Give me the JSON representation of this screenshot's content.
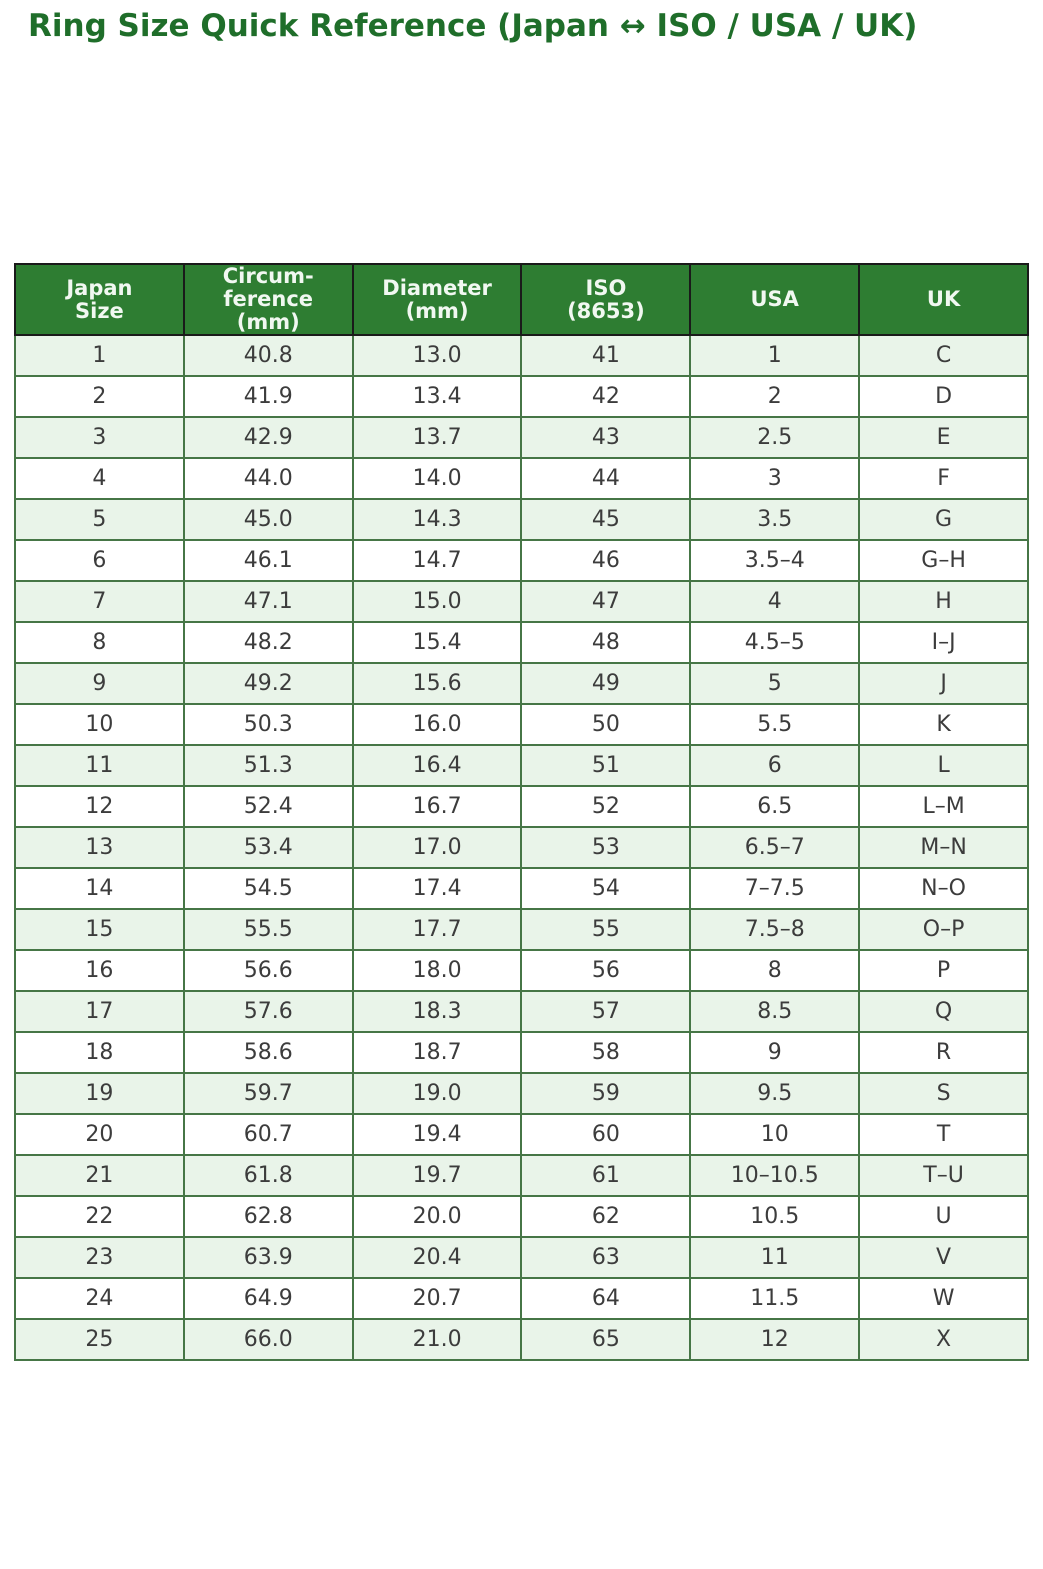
{
  "title": "Ring Size Quick Reference (Japan ↔ ISO / USA / UK)",
  "colors": {
    "header_bg": "#2e7d32",
    "header_text": "#f1f8f1",
    "row_alt_bg": "#e9f4e9",
    "row_bg": "#ffffff",
    "body_border": "#467646",
    "header_border": "#1a1a1a",
    "title_color": "#1f6e2a",
    "body_text": "#3c3c3c"
  },
  "table": {
    "header_display": [
      "Japan\nSize",
      "Circum-\nference\n(mm)",
      "Diameter\n(mm)",
      "ISO\n(8653)",
      "USA",
      "UK"
    ],
    "column_keys": [
      "japan-size",
      "circumference-mm",
      "diameter-mm",
      "iso-8653",
      "usa",
      "uk"
    ]
  },
  "chart_data": {
    "type": "table",
    "title": "Ring Size Quick Reference (Japan ↔ ISO / USA / UK)",
    "columns": [
      "Japan Size",
      "Circum-ference (mm)",
      "Diameter (mm)",
      "ISO (8653)",
      "USA",
      "UK"
    ],
    "rows": [
      [
        "1",
        "40.8",
        "13.0",
        "41",
        "1",
        "C"
      ],
      [
        "2",
        "41.9",
        "13.4",
        "42",
        "2",
        "D"
      ],
      [
        "3",
        "42.9",
        "13.7",
        "43",
        "2.5",
        "E"
      ],
      [
        "4",
        "44.0",
        "14.0",
        "44",
        "3",
        "F"
      ],
      [
        "5",
        "45.0",
        "14.3",
        "45",
        "3.5",
        "G"
      ],
      [
        "6",
        "46.1",
        "14.7",
        "46",
        "3.5–4",
        "G–H"
      ],
      [
        "7",
        "47.1",
        "15.0",
        "47",
        "4",
        "H"
      ],
      [
        "8",
        "48.2",
        "15.4",
        "48",
        "4.5–5",
        "I–J"
      ],
      [
        "9",
        "49.2",
        "15.6",
        "49",
        "5",
        "J"
      ],
      [
        "10",
        "50.3",
        "16.0",
        "50",
        "5.5",
        "K"
      ],
      [
        "11",
        "51.3",
        "16.4",
        "51",
        "6",
        "L"
      ],
      [
        "12",
        "52.4",
        "16.7",
        "52",
        "6.5",
        "L–M"
      ],
      [
        "13",
        "53.4",
        "17.0",
        "53",
        "6.5–7",
        "M–N"
      ],
      [
        "14",
        "54.5",
        "17.4",
        "54",
        "7–7.5",
        "N–O"
      ],
      [
        "15",
        "55.5",
        "17.7",
        "55",
        "7.5–8",
        "O–P"
      ],
      [
        "16",
        "56.6",
        "18.0",
        "56",
        "8",
        "P"
      ],
      [
        "17",
        "57.6",
        "18.3",
        "57",
        "8.5",
        "Q"
      ],
      [
        "18",
        "58.6",
        "18.7",
        "58",
        "9",
        "R"
      ],
      [
        "19",
        "59.7",
        "19.0",
        "59",
        "9.5",
        "S"
      ],
      [
        "20",
        "60.7",
        "19.4",
        "60",
        "10",
        "T"
      ],
      [
        "21",
        "61.8",
        "19.7",
        "61",
        "10–10.5",
        "T–U"
      ],
      [
        "22",
        "62.8",
        "20.0",
        "62",
        "10.5",
        "U"
      ],
      [
        "23",
        "63.9",
        "20.4",
        "63",
        "11",
        "V"
      ],
      [
        "24",
        "64.9",
        "20.7",
        "64",
        "11.5",
        "W"
      ],
      [
        "25",
        "66.0",
        "21.0",
        "65",
        "12",
        "X"
      ]
    ]
  }
}
